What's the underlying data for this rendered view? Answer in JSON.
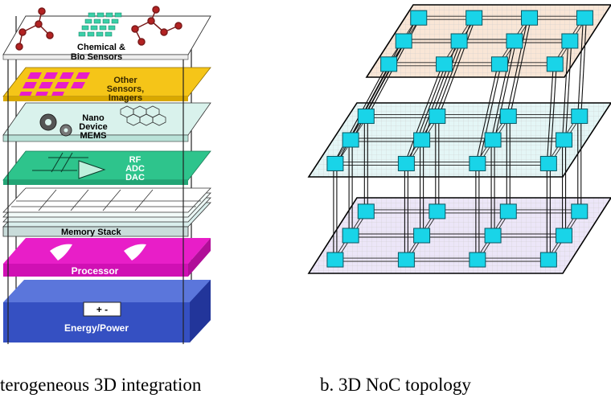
{
  "left_figure": {
    "caption": "terogeneous 3D integration",
    "layers": {
      "chemical": {
        "line1": "Chemical &",
        "line2": "Bio Sensors",
        "color": "#ffffff"
      },
      "sensors": {
        "line1": "Other",
        "line2": "Sensors,",
        "line3": "Imagers",
        "color": "#f5c518"
      },
      "nano": {
        "line1": "Nano",
        "line2": "Device",
        "line3": "MEMS",
        "color": "#d9f2ec"
      },
      "rf": {
        "line1": "RF",
        "line2": "ADC",
        "line3": "DAC",
        "color": "#2ec48c"
      },
      "memory": {
        "label": "Memory Stack",
        "color": "#e8f4f2"
      },
      "processor": {
        "label": "Processor",
        "color": "#e81ec8"
      },
      "energy": {
        "label": "Energy/Power",
        "color": "#3f5ccf"
      },
      "battery_symbols": "+   -"
    }
  },
  "right_figure": {
    "caption": "b. 3D NoC topology",
    "node_color": "#19d4e8",
    "layer_fills": [
      "#f9e6d6",
      "#e4f6f6",
      "#ece6f8"
    ]
  }
}
